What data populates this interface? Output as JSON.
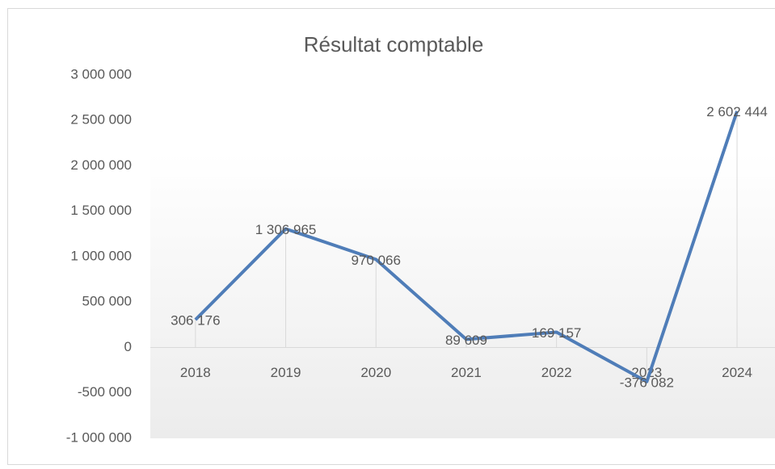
{
  "chart_data": {
    "type": "line",
    "title": "Résultat comptable",
    "categories": [
      "2018",
      "2019",
      "2020",
      "2021",
      "2022",
      "2023",
      "2024"
    ],
    "series": [
      {
        "name": "Résultat comptable",
        "color": "#4f7db8",
        "values": [
          306176,
          1306965,
          970066,
          89609,
          169157,
          -376082,
          2602444
        ],
        "value_labels": [
          "306 176",
          "1 306 965",
          "970 066",
          "89 609",
          "169 157",
          "-376 082",
          "2 602 444"
        ]
      }
    ],
    "ylim": [
      -1000000,
      3000000
    ],
    "yticks": [
      {
        "value": -1000000,
        "label": "-1 000 000"
      },
      {
        "value": -500000,
        "label": "-500 000"
      },
      0,
      {
        "value": 500000,
        "label": "500 000"
      },
      {
        "value": 1000000,
        "label": "1 000 000"
      },
      {
        "value": 1500000,
        "label": "1 500 000"
      },
      {
        "value": 2000000,
        "label": "2 000 000"
      },
      {
        "value": 2500000,
        "label": "2 500 000"
      },
      {
        "value": 3000000,
        "label": "3 000 000"
      }
    ]
  }
}
